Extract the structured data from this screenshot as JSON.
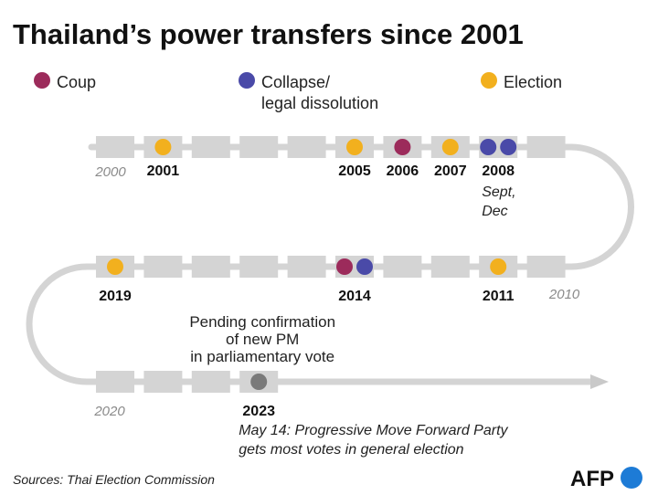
{
  "chart_data": {
    "type": "timeline",
    "title": "Thailand’s power transfers since 2001",
    "legend": [
      {
        "key": "coup",
        "label": "Coup",
        "color": "#9c2b5b"
      },
      {
        "key": "collapse",
        "label": "Collapse/ legal dissolution",
        "label_lines": [
          "Collapse/",
          "legal dissolution"
        ],
        "color": "#4a4aa8"
      },
      {
        "key": "election",
        "label": "Election",
        "color": "#f2b01e"
      }
    ],
    "pending_color": "#7a7a7a",
    "decade_labels": [
      "2000",
      "2010",
      "2020"
    ],
    "events": [
      {
        "year": 2001,
        "types": [
          "election"
        ],
        "label": "2001"
      },
      {
        "year": 2005,
        "types": [
          "election"
        ],
        "label": "2005"
      },
      {
        "year": 2006,
        "types": [
          "coup"
        ],
        "label": "2006"
      },
      {
        "year": 2007,
        "types": [
          "election"
        ],
        "label": "2007"
      },
      {
        "year": 2008,
        "types": [
          "collapse",
          "collapse"
        ],
        "label": "2008",
        "note_lines": [
          "Sept,",
          "Dec"
        ]
      },
      {
        "year": 2011,
        "types": [
          "election"
        ],
        "label": "2011"
      },
      {
        "year": 2014,
        "types": [
          "coup",
          "collapse"
        ],
        "label": "2014"
      },
      {
        "year": 2019,
        "types": [
          "election"
        ],
        "label": "2019"
      },
      {
        "year": 2023,
        "types": [
          "pending"
        ],
        "label": "2023",
        "note_lines": [
          "May 14: Progressive Move Forward Party",
          "gets most votes in general election"
        ],
        "callout_lines": [
          "Pending confirmation",
          "of new PM",
          "in parliamentary vote"
        ]
      }
    ]
  },
  "source": "Sources: Thai Election Commission",
  "logo": {
    "text": "AFP",
    "color": "#1d7bd6"
  }
}
